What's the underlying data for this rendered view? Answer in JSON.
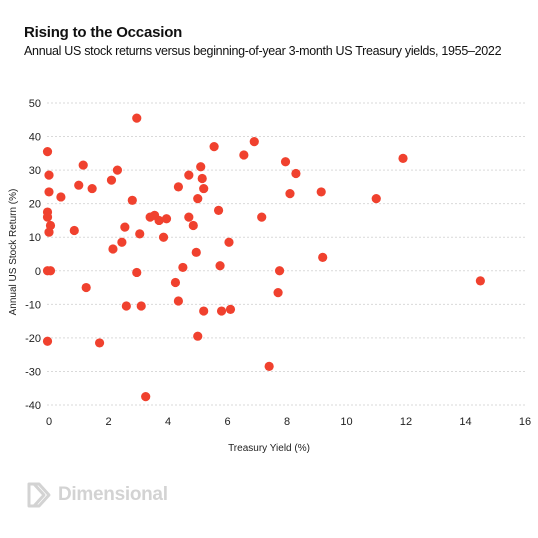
{
  "title": "Rising to the Occasion",
  "subtitle": "Annual US stock returns versus beginning-of-year 3-month US Treasury yields, 1955–2022",
  "brand": "Dimensional",
  "colors": {
    "point": "#f0412e",
    "grid": "#d9d9d9",
    "logo": "#d3d3d3"
  },
  "chart_data": {
    "type": "scatter",
    "xlabel": "Treasury Yield (%)",
    "ylabel": "Annual US Stock Return (%)",
    "xlim": [
      0,
      16
    ],
    "ylim": [
      -40,
      50
    ],
    "xticks": [
      "0",
      "2",
      "4",
      "6",
      "8",
      "10",
      "12",
      "14",
      "16"
    ],
    "yticks": [
      "50",
      "40",
      "30",
      "20",
      "10",
      "0",
      "-10",
      "-20",
      "-30",
      "-40"
    ],
    "grid": "horizontal",
    "points": [
      {
        "x": -0.05,
        "y": 35.5
      },
      {
        "x": 0.0,
        "y": 28.5
      },
      {
        "x": 0.0,
        "y": 23.5
      },
      {
        "x": -0.05,
        "y": 17.5
      },
      {
        "x": -0.05,
        "y": 16.0
      },
      {
        "x": 0.05,
        "y": 13.5
      },
      {
        "x": 0.0,
        "y": 11.5
      },
      {
        "x": -0.05,
        "y": 0.0
      },
      {
        "x": 0.05,
        "y": 0.0
      },
      {
        "x": -0.05,
        "y": -21.0
      },
      {
        "x": 0.4,
        "y": 22.0
      },
      {
        "x": 0.85,
        "y": 12.0
      },
      {
        "x": 1.0,
        "y": 25.5
      },
      {
        "x": 1.15,
        "y": 31.5
      },
      {
        "x": 1.25,
        "y": -5.0
      },
      {
        "x": 1.45,
        "y": 24.5
      },
      {
        "x": 1.7,
        "y": -21.5
      },
      {
        "x": 2.1,
        "y": 27.0
      },
      {
        "x": 2.3,
        "y": 30.0
      },
      {
        "x": 2.15,
        "y": 6.5
      },
      {
        "x": 2.45,
        "y": 8.5
      },
      {
        "x": 2.55,
        "y": 13.0
      },
      {
        "x": 2.6,
        "y": -10.5
      },
      {
        "x": 2.8,
        "y": 21.0
      },
      {
        "x": 2.95,
        "y": 45.5
      },
      {
        "x": 2.95,
        "y": -0.5
      },
      {
        "x": 3.05,
        "y": 11.0
      },
      {
        "x": 3.1,
        "y": -10.5
      },
      {
        "x": 3.25,
        "y": -37.5
      },
      {
        "x": 3.4,
        "y": 16.0
      },
      {
        "x": 3.55,
        "y": 16.5
      },
      {
        "x": 3.7,
        "y": 15.0
      },
      {
        "x": 3.85,
        "y": 10.0
      },
      {
        "x": 3.95,
        "y": 15.5
      },
      {
        "x": 4.25,
        "y": -3.5
      },
      {
        "x": 4.35,
        "y": 25.0
      },
      {
        "x": 4.35,
        "y": -9.0
      },
      {
        "x": 4.5,
        "y": 1.0
      },
      {
        "x": 4.7,
        "y": 28.5
      },
      {
        "x": 4.7,
        "y": 16.0
      },
      {
        "x": 4.85,
        "y": 13.5
      },
      {
        "x": 4.95,
        "y": 5.5
      },
      {
        "x": 5.0,
        "y": 21.5
      },
      {
        "x": 5.0,
        "y": -19.5
      },
      {
        "x": 5.1,
        "y": 31.0
      },
      {
        "x": 5.15,
        "y": 27.5
      },
      {
        "x": 5.2,
        "y": 24.5
      },
      {
        "x": 5.2,
        "y": -12.0
      },
      {
        "x": 5.55,
        "y": 37.0
      },
      {
        "x": 5.7,
        "y": 18.0
      },
      {
        "x": 5.75,
        "y": 1.5
      },
      {
        "x": 5.8,
        "y": -12.0
      },
      {
        "x": 6.05,
        "y": 8.5
      },
      {
        "x": 6.1,
        "y": -11.5
      },
      {
        "x": 6.55,
        "y": 34.5
      },
      {
        "x": 6.9,
        "y": 38.5
      },
      {
        "x": 7.15,
        "y": 16.0
      },
      {
        "x": 7.4,
        "y": -28.5
      },
      {
        "x": 7.7,
        "y": -6.5
      },
      {
        "x": 7.75,
        "y": 0.0
      },
      {
        "x": 7.95,
        "y": 32.5
      },
      {
        "x": 8.1,
        "y": 23.0
      },
      {
        "x": 8.3,
        "y": 29.0
      },
      {
        "x": 9.15,
        "y": 23.5
      },
      {
        "x": 9.2,
        "y": 4.0
      },
      {
        "x": 11.0,
        "y": 21.5
      },
      {
        "x": 11.9,
        "y": 33.5
      },
      {
        "x": 14.5,
        "y": -3.0
      }
    ]
  }
}
